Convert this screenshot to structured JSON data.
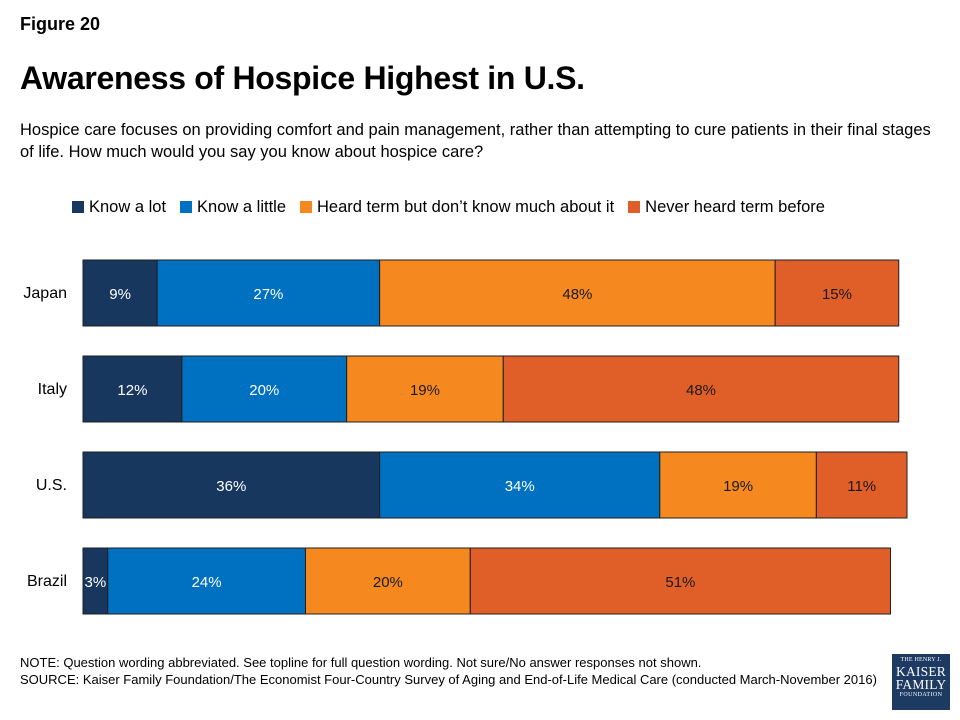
{
  "figure_label": "Figure 20",
  "title": "Awareness of Hospice Highest in U.S.",
  "subtitle": "Hospice care focuses on providing comfort and pain management, rather than attempting to cure patients in their final stages of life. How much would you say you know about hospice care?",
  "colors": {
    "know_a_lot": "#17375e",
    "know_a_little": "#0070c0",
    "heard_term": "#f5891f",
    "never_heard": "#e05e27",
    "bar_border": "#1f1f1f"
  },
  "chart_data": {
    "type": "bar",
    "orientation": "horizontal",
    "stacked": true,
    "categories": [
      "Japan",
      "Italy",
      "U.S.",
      "Brazil"
    ],
    "series": [
      {
        "name": "Know a lot",
        "values": [
          9,
          12,
          36,
          3
        ],
        "labels": [
          "9%",
          "12%",
          "36%",
          "3%"
        ],
        "color": "#17375e"
      },
      {
        "name": "Know a little",
        "values": [
          27,
          20,
          34,
          24
        ],
        "labels": [
          "27%",
          "20%",
          "34%",
          "24%"
        ],
        "color": "#0070c0"
      },
      {
        "name": "Heard term but don’t know much about it",
        "values": [
          48,
          19,
          19,
          20
        ],
        "labels": [
          "48%",
          "19%",
          "19%",
          "20%"
        ],
        "color": "#f5891f"
      },
      {
        "name": "Never heard term before",
        "values": [
          15,
          48,
          11,
          51
        ],
        "labels": [
          "15%",
          "48%",
          "11%",
          "51%"
        ],
        "color": "#e05e27"
      }
    ],
    "title": "Awareness of Hospice Highest in U.S.",
    "legend_position": "top",
    "grid": false,
    "xlim": [
      0,
      100
    ]
  },
  "footer": {
    "note": "NOTE: Question wording abbreviated. See topline for full question wording. Not sure/No answer responses not shown.",
    "source": "SOURCE: Kaiser Family Foundation/The Economist Four-Country Survey of Aging and End-of-Life Medical Care (conducted March-November 2016)"
  },
  "logo": {
    "line1": "THE HENRY J.",
    "line2": "KAISER",
    "line3": "FAMILY",
    "line4": "FOUNDATION"
  }
}
